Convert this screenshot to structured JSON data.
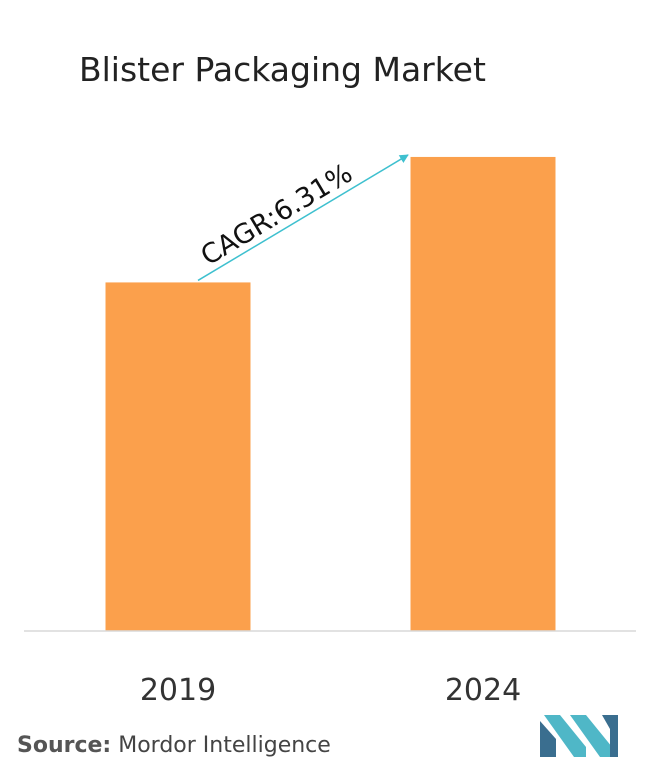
{
  "chart_data": {
    "type": "bar",
    "title": "Blister Packaging Market",
    "categories": [
      "2019",
      "2024"
    ],
    "values": [
      100,
      136
    ],
    "ylim": [
      0,
      140
    ],
    "grid": false,
    "annotation": "CAGR:6.31%",
    "bar_color": "#FBA04C",
    "arrow_color": "#3EC0CF"
  },
  "source": {
    "label": "Source:",
    "text": "Mordor Intelligence"
  },
  "logo": {
    "icon": "mordor-intelligence-logo-icon",
    "colors": [
      "#3A6E8F",
      "#4FB7C7"
    ]
  }
}
